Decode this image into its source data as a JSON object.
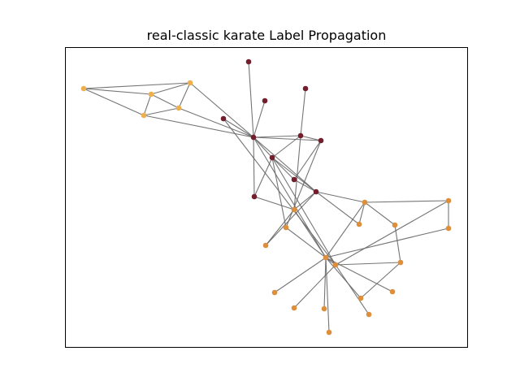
{
  "title": "real-classic karate Label Propagation",
  "colors": {
    "edge": "#666666",
    "frame": "#000000",
    "community_1": "#eeb04f",
    "community_2": "#721e2c",
    "community_3": "#dd8f3c"
  }
}
